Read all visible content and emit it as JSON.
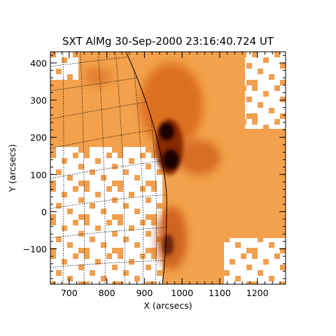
{
  "title": "SXT AlMg 30-Sep-2000 23:16:40.724 UT",
  "x_axis": {
    "label": "X (arcsecs)",
    "ticks": [
      700,
      800,
      900,
      1000,
      1100,
      1200
    ],
    "range": [
      650,
      1275
    ]
  },
  "y_axis": {
    "label": "Y (arcsecs)",
    "ticks": [
      -100,
      0,
      100,
      200,
      300,
      400
    ],
    "range": [
      -195,
      430
    ]
  },
  "colors": {
    "background": "#ffffff",
    "pixel_light": "#f0a050",
    "pixel_mid": "#e07820",
    "pixel_dark": "#a03808",
    "core": "#1a0500",
    "grid": "#000000"
  }
}
